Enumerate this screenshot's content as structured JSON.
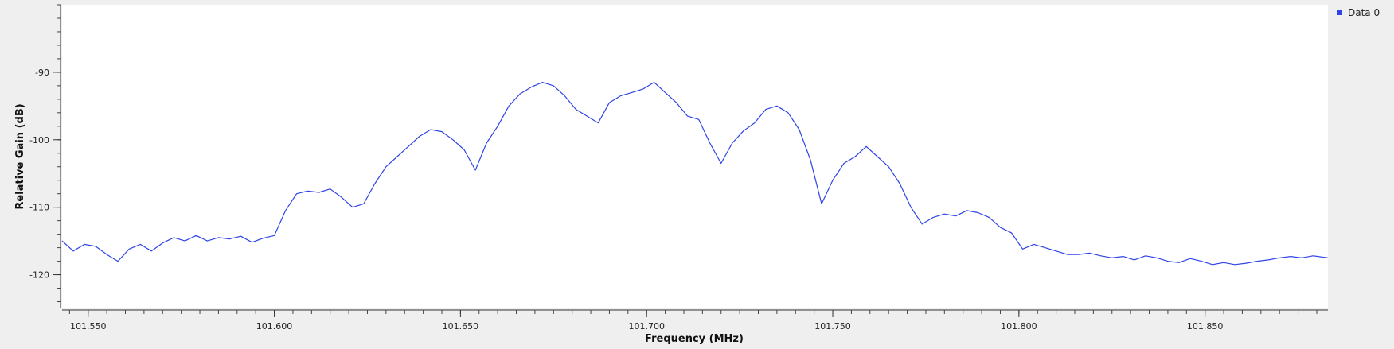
{
  "chart_data": {
    "type": "line",
    "xlabel": "Frequency (MHz)",
    "ylabel": "Relative Gain (dB)",
    "xlim": [
      101.543,
      101.883
    ],
    "ylim": [
      -125,
      -80
    ],
    "x_ticks": [
      101.55,
      101.6,
      101.65,
      101.7,
      101.75,
      101.8,
      101.85
    ],
    "x_tick_labels": [
      "101.550",
      "101.600",
      "101.650",
      "101.700",
      "101.750",
      "101.800",
      "101.850"
    ],
    "y_ticks": [
      -90,
      -100,
      -110,
      -120
    ],
    "y_tick_labels": [
      "-90",
      "-100",
      "-110",
      "-120"
    ],
    "grid": false,
    "legend": {
      "placement": "top-right"
    },
    "series": [
      {
        "name": "Data 0",
        "color": "#2f44e6",
        "x": [
          101.543,
          101.546,
          101.549,
          101.552,
          101.555,
          101.558,
          101.561,
          101.564,
          101.567,
          101.57,
          101.573,
          101.576,
          101.579,
          101.582,
          101.585,
          101.588,
          101.591,
          101.594,
          101.597,
          101.6,
          101.603,
          101.606,
          101.609,
          101.612,
          101.615,
          101.618,
          101.621,
          101.624,
          101.627,
          101.63,
          101.633,
          101.636,
          101.639,
          101.642,
          101.645,
          101.648,
          101.651,
          101.654,
          101.657,
          101.66,
          101.663,
          101.666,
          101.669,
          101.672,
          101.675,
          101.678,
          101.681,
          101.684,
          101.687,
          101.69,
          101.693,
          101.696,
          101.699,
          101.702,
          101.705,
          101.708,
          101.711,
          101.714,
          101.717,
          101.72,
          101.723,
          101.726,
          101.729,
          101.732,
          101.735,
          101.738,
          101.741,
          101.744,
          101.747,
          101.75,
          101.753,
          101.756,
          101.759,
          101.762,
          101.765,
          101.768,
          101.771,
          101.774,
          101.777,
          101.78,
          101.783,
          101.786,
          101.789,
          101.792,
          101.795,
          101.798,
          101.801,
          101.804,
          101.807,
          101.81,
          101.813,
          101.816,
          101.819,
          101.822,
          101.825,
          101.828,
          101.831,
          101.834,
          101.837,
          101.84,
          101.843,
          101.846,
          101.849,
          101.852,
          101.855,
          101.858,
          101.861,
          101.864,
          101.867,
          101.87,
          101.873,
          101.876,
          101.879,
          101.883
        ],
        "y": [
          -115,
          -116.5,
          -115.5,
          -115.8,
          -117,
          -118,
          -116.2,
          -115.5,
          -116.5,
          -115.3,
          -114.5,
          -115,
          -114.2,
          -115,
          -114.5,
          -114.7,
          -114.3,
          -115.2,
          -114.6,
          -114.2,
          -110.5,
          -108,
          -107.6,
          -107.8,
          -107.3,
          -108.5,
          -110,
          -109.5,
          -106.5,
          -104,
          -102.5,
          -101,
          -99.5,
          -98.5,
          -98.8,
          -100,
          -101.5,
          -104.5,
          -100.5,
          -98,
          -95,
          -93.2,
          -92.2,
          -91.5,
          -92,
          -93.5,
          -95.5,
          -96.5,
          -97.5,
          -94.5,
          -93.5,
          -93,
          -92.5,
          -91.5,
          -93,
          -94.5,
          -96.5,
          -97,
          -100.5,
          -103.5,
          -100.5,
          -98.7,
          -97.5,
          -95.5,
          -95,
          -96,
          -98.5,
          -103,
          -109.5,
          -106,
          -103.5,
          -102.5,
          -101,
          -102.5,
          -104,
          -106.5,
          -110,
          -112.5,
          -111.5,
          -111,
          -111.3,
          -110.5,
          -110.8,
          -111.5,
          -113,
          -113.8,
          -116.2,
          -115.5,
          -116,
          -116.5,
          -117,
          -117,
          -116.8,
          -117.2,
          -117.5,
          -117.3,
          -117.8,
          -117.2,
          -117.5,
          -118,
          -118.2,
          -117.6,
          -118,
          -118.5,
          -118.2,
          -118.5,
          -118.3,
          -118,
          -117.8,
          -117.5,
          -117.3,
          -117.5,
          -117.2,
          -117.5
        ]
      }
    ]
  }
}
